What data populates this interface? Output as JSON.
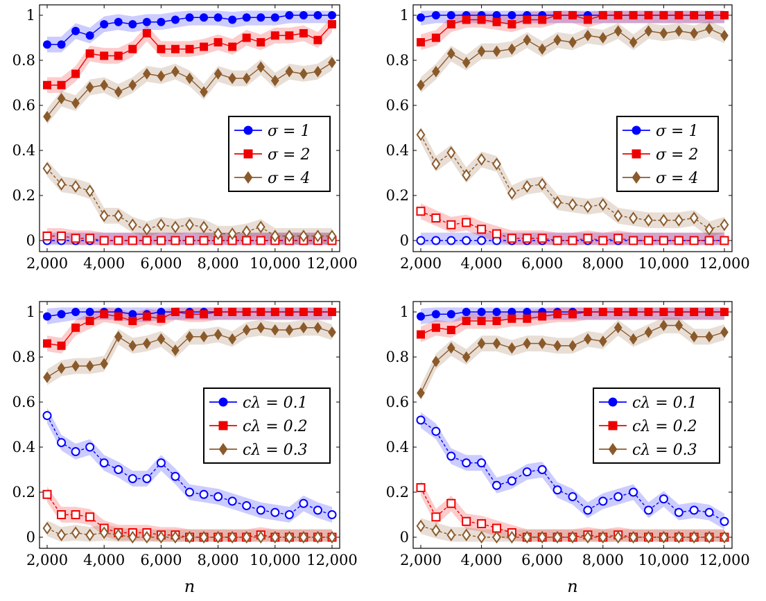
{
  "chart_data": [
    {
      "type": "line",
      "panel": "top-left",
      "xlabel": "",
      "ylabel": "",
      "xlim": [
        2000,
        12000
      ],
      "ylim": [
        0,
        1
      ],
      "x_ticks": [
        "2,000",
        "4,000",
        "6,000",
        "8,000",
        "10,000",
        "12,000"
      ],
      "y_ticks": [
        "0",
        "0.2",
        "0.4",
        "0.6",
        "0.8",
        "1"
      ],
      "legend_position": "middle-right",
      "x": [
        2000,
        2500,
        3000,
        3500,
        4000,
        4500,
        5000,
        5500,
        6000,
        6500,
        7000,
        7500,
        8000,
        8500,
        9000,
        9500,
        10000,
        10500,
        11000,
        11500,
        12000
      ],
      "series": [
        {
          "name": "σ = 1",
          "color": "#0000ff",
          "marker": "circle",
          "filled": true,
          "values": [
            0.87,
            0.87,
            0.93,
            0.91,
            0.96,
            0.97,
            0.96,
            0.97,
            0.97,
            0.98,
            0.99,
            0.99,
            0.99,
            0.98,
            0.99,
            0.99,
            0.99,
            1.0,
            1.0,
            1.0,
            1.0
          ]
        },
        {
          "name": "σ = 2",
          "color": "#ee0000",
          "marker": "square",
          "filled": true,
          "values": [
            0.69,
            0.69,
            0.74,
            0.83,
            0.82,
            0.82,
            0.85,
            0.92,
            0.85,
            0.85,
            0.85,
            0.86,
            0.88,
            0.86,
            0.9,
            0.88,
            0.91,
            0.91,
            0.92,
            0.89,
            0.96
          ]
        },
        {
          "name": "σ = 4",
          "color": "#8b5a2b",
          "marker": "diamond",
          "filled": true,
          "values": [
            0.55,
            0.63,
            0.61,
            0.68,
            0.69,
            0.66,
            0.69,
            0.74,
            0.73,
            0.75,
            0.72,
            0.66,
            0.74,
            0.72,
            0.72,
            0.77,
            0.71,
            0.75,
            0.74,
            0.75,
            0.79
          ]
        },
        {
          "color": "#0000ff",
          "marker": "circle",
          "filled": false,
          "values": [
            0,
            0,
            0,
            0,
            0,
            0,
            0,
            0,
            0,
            0,
            0,
            0,
            0,
            0,
            0,
            0,
            0,
            0,
            0,
            0,
            0
          ]
        },
        {
          "color": "#ee0000",
          "marker": "square",
          "filled": false,
          "values": [
            0.02,
            0.02,
            0.01,
            0.01,
            0,
            0,
            0,
            0,
            0,
            0,
            0,
            0,
            0,
            0,
            0,
            0,
            0,
            0,
            0,
            0,
            0
          ]
        },
        {
          "color": "#8b5a2b",
          "marker": "diamond",
          "filled": false,
          "values": [
            0.32,
            0.25,
            0.24,
            0.22,
            0.11,
            0.11,
            0.07,
            0.05,
            0.07,
            0.06,
            0.07,
            0.06,
            0.03,
            0.03,
            0.04,
            0.06,
            0.02,
            0.02,
            0.02,
            0.02,
            0.02
          ]
        }
      ]
    },
    {
      "type": "line",
      "panel": "top-right",
      "xlabel": "",
      "ylabel": "",
      "xlim": [
        2000,
        12000
      ],
      "ylim": [
        0,
        1
      ],
      "x_ticks": [
        "2,000",
        "4,000",
        "6,000",
        "8,000",
        "10,000",
        "12,000"
      ],
      "y_ticks": [
        "0",
        "0.2",
        "0.4",
        "0.6",
        "0.8",
        "1"
      ],
      "legend_position": "middle-right",
      "x": [
        2000,
        2500,
        3000,
        3500,
        4000,
        4500,
        5000,
        5500,
        6000,
        6500,
        7000,
        7500,
        8000,
        8500,
        9000,
        9500,
        10000,
        10500,
        11000,
        11500,
        12000
      ],
      "series": [
        {
          "name": "σ = 1",
          "color": "#0000ff",
          "marker": "circle",
          "filled": true,
          "values": [
            0.99,
            1.0,
            1.0,
            1.0,
            1.0,
            1.0,
            1.0,
            1.0,
            1.0,
            1.0,
            1.0,
            1.0,
            1.0,
            1.0,
            1.0,
            1.0,
            1.0,
            1.0,
            1.0,
            1.0,
            1.0
          ]
        },
        {
          "name": "σ = 2",
          "color": "#ee0000",
          "marker": "square",
          "filled": true,
          "values": [
            0.88,
            0.9,
            0.96,
            0.98,
            0.98,
            0.97,
            0.96,
            0.98,
            0.98,
            1.0,
            1.0,
            0.98,
            1.0,
            1.0,
            1.0,
            1.0,
            1.0,
            1.0,
            1.0,
            1.0,
            1.0
          ]
        },
        {
          "name": "σ = 4",
          "color": "#8b5a2b",
          "marker": "diamond",
          "filled": true,
          "values": [
            0.69,
            0.75,
            0.83,
            0.79,
            0.84,
            0.84,
            0.85,
            0.89,
            0.85,
            0.89,
            0.88,
            0.91,
            0.9,
            0.93,
            0.88,
            0.93,
            0.92,
            0.93,
            0.92,
            0.94,
            0.91
          ]
        },
        {
          "color": "#0000ff",
          "marker": "circle",
          "filled": false,
          "values": [
            0,
            0,
            0,
            0,
            0,
            0,
            0,
            0,
            0,
            0,
            0,
            0,
            0,
            0,
            0,
            0,
            0,
            0,
            0,
            0,
            0
          ]
        },
        {
          "color": "#ee0000",
          "marker": "square",
          "filled": false,
          "values": [
            0.13,
            0.1,
            0.07,
            0.08,
            0.05,
            0.03,
            0.01,
            0.01,
            0.01,
            0,
            0,
            0.01,
            0,
            0.01,
            0,
            0,
            0,
            0,
            0,
            0,
            0
          ]
        },
        {
          "color": "#8b5a2b",
          "marker": "diamond",
          "filled": false,
          "values": [
            0.47,
            0.34,
            0.39,
            0.29,
            0.36,
            0.34,
            0.21,
            0.24,
            0.25,
            0.17,
            0.16,
            0.15,
            0.16,
            0.11,
            0.1,
            0.09,
            0.09,
            0.09,
            0.1,
            0.05,
            0.07
          ]
        }
      ]
    },
    {
      "type": "line",
      "panel": "bottom-left",
      "xlabel": "n",
      "ylabel": "",
      "xlim": [
        2000,
        12000
      ],
      "ylim": [
        0,
        1
      ],
      "x_ticks": [
        "2,000",
        "4,000",
        "6,000",
        "8,000",
        "10,000",
        "12,000"
      ],
      "y_ticks": [
        "0",
        "0.2",
        "0.4",
        "0.6",
        "0.8",
        "1"
      ],
      "legend_position": "middle-right",
      "x": [
        2000,
        2500,
        3000,
        3500,
        4000,
        4500,
        5000,
        5500,
        6000,
        6500,
        7000,
        7500,
        8000,
        8500,
        9000,
        9500,
        10000,
        10500,
        11000,
        11500,
        12000
      ],
      "series": [
        {
          "name": "cλ = 0.1",
          "color": "#0000ff",
          "marker": "circle",
          "filled": true,
          "values": [
            0.98,
            0.99,
            1.0,
            1.0,
            1.0,
            1.0,
            0.99,
            0.99,
            1.0,
            1.0,
            1.0,
            1.0,
            1.0,
            1.0,
            1.0,
            1.0,
            1.0,
            1.0,
            1.0,
            1.0,
            1.0
          ]
        },
        {
          "name": "cλ = 0.2",
          "color": "#ee0000",
          "marker": "square",
          "filled": true,
          "values": [
            0.86,
            0.85,
            0.93,
            0.96,
            0.99,
            0.98,
            0.96,
            0.98,
            0.97,
            1.0,
            0.99,
            0.99,
            1.0,
            1.0,
            1.0,
            1.0,
            1.0,
            1.0,
            1.0,
            1.0,
            1.0
          ]
        },
        {
          "name": "cλ = 0.3",
          "color": "#8b5a2b",
          "marker": "diamond",
          "filled": true,
          "values": [
            0.71,
            0.75,
            0.76,
            0.76,
            0.77,
            0.89,
            0.85,
            0.86,
            0.88,
            0.83,
            0.89,
            0.89,
            0.9,
            0.88,
            0.92,
            0.93,
            0.92,
            0.92,
            0.93,
            0.93,
            0.91
          ]
        },
        {
          "color": "#0000ff",
          "marker": "circle",
          "filled": false,
          "values": [
            0.54,
            0.42,
            0.38,
            0.4,
            0.33,
            0.3,
            0.26,
            0.26,
            0.33,
            0.27,
            0.2,
            0.19,
            0.18,
            0.16,
            0.14,
            0.12,
            0.11,
            0.1,
            0.15,
            0.12,
            0.1
          ]
        },
        {
          "color": "#ee0000",
          "marker": "square",
          "filled": false,
          "values": [
            0.19,
            0.1,
            0.1,
            0.09,
            0.04,
            0.02,
            0.02,
            0.02,
            0.01,
            0.01,
            0,
            0,
            0,
            0,
            0,
            0.01,
            0,
            0,
            0,
            0,
            0
          ]
        },
        {
          "color": "#8b5a2b",
          "marker": "diamond",
          "filled": false,
          "values": [
            0.04,
            0.01,
            0.02,
            0.01,
            0.02,
            0.01,
            0,
            0,
            0,
            0,
            0,
            0,
            0,
            0,
            0,
            0,
            0,
            0,
            0,
            0,
            0
          ]
        }
      ]
    },
    {
      "type": "line",
      "panel": "bottom-right",
      "xlabel": "n",
      "ylabel": "",
      "xlim": [
        2000,
        12000
      ],
      "ylim": [
        0,
        1
      ],
      "x_ticks": [
        "2,000",
        "4,000",
        "6,000",
        "8,000",
        "10,000",
        "12,000"
      ],
      "y_ticks": [
        "0",
        "0.2",
        "0.4",
        "0.6",
        "0.8",
        "1"
      ],
      "legend_position": "middle-right",
      "x": [
        2000,
        2500,
        3000,
        3500,
        4000,
        4500,
        5000,
        5500,
        6000,
        6500,
        7000,
        7500,
        8000,
        8500,
        9000,
        9500,
        10000,
        10500,
        11000,
        11500,
        12000
      ],
      "series": [
        {
          "name": "cλ = 0.1",
          "color": "#0000ff",
          "marker": "circle",
          "filled": true,
          "values": [
            0.98,
            0.99,
            0.99,
            1.0,
            1.0,
            1.0,
            1.0,
            1.0,
            1.0,
            1.0,
            1.0,
            1.0,
            1.0,
            1.0,
            1.0,
            1.0,
            1.0,
            1.0,
            1.0,
            1.0,
            1.0
          ]
        },
        {
          "name": "cλ = 0.2",
          "color": "#ee0000",
          "marker": "square",
          "filled": true,
          "values": [
            0.9,
            0.93,
            0.92,
            0.96,
            0.96,
            0.96,
            0.97,
            0.97,
            0.98,
            0.99,
            0.99,
            1.0,
            1.0,
            1.0,
            1.0,
            1.0,
            1.0,
            1.0,
            1.0,
            1.0,
            1.0
          ]
        },
        {
          "name": "cλ = 0.3",
          "color": "#8b5a2b",
          "marker": "diamond",
          "filled": true,
          "values": [
            0.64,
            0.78,
            0.84,
            0.8,
            0.86,
            0.86,
            0.84,
            0.86,
            0.86,
            0.85,
            0.85,
            0.88,
            0.87,
            0.93,
            0.88,
            0.91,
            0.94,
            0.94,
            0.89,
            0.89,
            0.91
          ]
        },
        {
          "color": "#0000ff",
          "marker": "circle",
          "filled": false,
          "values": [
            0.52,
            0.47,
            0.36,
            0.33,
            0.33,
            0.23,
            0.25,
            0.29,
            0.3,
            0.21,
            0.18,
            0.12,
            0.16,
            0.18,
            0.2,
            0.12,
            0.17,
            0.11,
            0.12,
            0.11,
            0.07
          ]
        },
        {
          "color": "#ee0000",
          "marker": "square",
          "filled": false,
          "values": [
            0.22,
            0.09,
            0.15,
            0.07,
            0.06,
            0.04,
            0.02,
            0,
            0,
            0,
            0,
            0.01,
            0,
            0.01,
            0,
            0,
            0,
            0,
            0,
            0,
            0
          ]
        },
        {
          "color": "#8b5a2b",
          "marker": "diamond",
          "filled": false,
          "values": [
            0.05,
            0.03,
            0.01,
            0.01,
            0,
            0,
            0,
            0,
            0,
            0,
            0,
            0,
            0,
            0,
            0,
            0,
            0,
            0,
            0,
            0,
            0
          ]
        }
      ]
    }
  ]
}
